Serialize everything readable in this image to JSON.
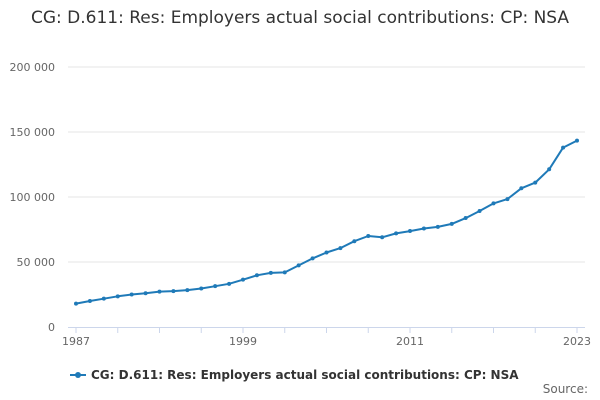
{
  "title": "CG: D.611: Res: Employers actual social contributions: CP: NSA",
  "source_label": "Source:",
  "colors": {
    "series": "#1f7ab8",
    "grid": "#e6e6e6",
    "axis": "#ccd6eb"
  },
  "chart_data": {
    "type": "line",
    "title": "CG: D.611: Res: Employers actual social contributions: CP: NSA",
    "xlabel": "",
    "ylabel": "",
    "xlim": [
      1987,
      2023
    ],
    "ylim": [
      0,
      200000
    ],
    "grid": true,
    "legend": "bottom",
    "x_ticks": [
      {
        "value": 1987,
        "label": "1987"
      },
      {
        "value": 1999,
        "label": "1999"
      },
      {
        "value": 2011,
        "label": "2011"
      },
      {
        "value": 2023,
        "label": "2023"
      }
    ],
    "y_ticks": [
      {
        "value": 0,
        "label": "0"
      },
      {
        "value": 50000,
        "label": "50 000"
      },
      {
        "value": 100000,
        "label": "100 000"
      },
      {
        "value": 150000,
        "label": "150 000"
      },
      {
        "value": 200000,
        "label": "200 000"
      }
    ],
    "series": [
      {
        "name": "CG: D.611: Res: Employers actual social contributions: CP: NSA",
        "x": [
          1987,
          1988,
          1989,
          1990,
          1991,
          1992,
          1993,
          1994,
          1995,
          1996,
          1997,
          1998,
          1999,
          2000,
          2001,
          2002,
          2003,
          2004,
          2005,
          2006,
          2007,
          2008,
          2009,
          2010,
          2011,
          2012,
          2013,
          2014,
          2015,
          2016,
          2017,
          2018,
          2019,
          2020,
          2021,
          2022,
          2023
        ],
        "values": [
          18000,
          20000,
          21800,
          23600,
          25000,
          26000,
          27200,
          27600,
          28400,
          29600,
          31400,
          33200,
          36400,
          39800,
          41600,
          42000,
          47400,
          52800,
          57300,
          60700,
          66000,
          70000,
          69000,
          72000,
          73800,
          75800,
          77000,
          79300,
          83800,
          89200,
          95100,
          98400,
          106700,
          111100,
          121300,
          138000,
          143400
        ]
      }
    ]
  }
}
